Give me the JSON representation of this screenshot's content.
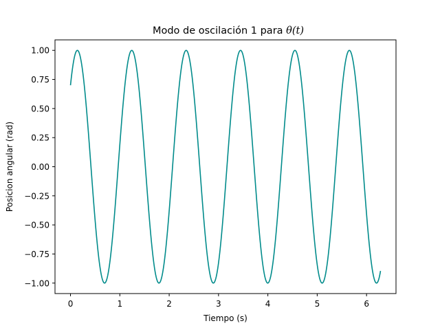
{
  "chart_data": {
    "type": "line",
    "title": "Modo de oscilación 1 para ",
    "title_math": "θ(t)",
    "xlabel": "Tiempo (s)",
    "ylabel": "Posicion angular (rad)",
    "xlim": [
      -0.314,
      6.597
    ],
    "ylim": [
      -1.09,
      1.09
    ],
    "xticks": [
      0,
      1,
      2,
      3,
      4,
      5,
      6
    ],
    "yticks": [
      -1.0,
      -0.75,
      -0.5,
      -0.25,
      0.0,
      0.25,
      0.5,
      0.75,
      1.0
    ],
    "ytick_labels": [
      "−1.00",
      "−0.75",
      "−0.50",
      "−0.25",
      "0.00",
      "0.25",
      "0.50",
      "0.75",
      "1.00"
    ],
    "grid": false,
    "series": [
      {
        "color": "#008b8b",
        "function": "cos(omega*t - phi)",
        "omega": 5.7,
        "phi": 0.7954,
        "t_range": [
          0,
          6.2832
        ]
      }
    ]
  }
}
